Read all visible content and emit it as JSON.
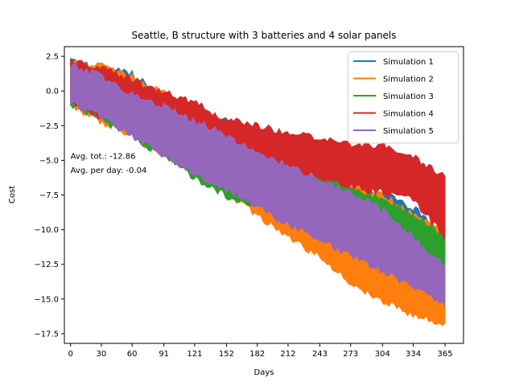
{
  "chart_data": {
    "type": "area",
    "title": "Seattle, B structure with 3 batteries and 4 solar panels",
    "xlabel": "Days",
    "ylabel": "Cost",
    "xlim": [
      -6,
      383
    ],
    "ylim": [
      -18.2,
      3.2
    ],
    "x_ticks": [
      0,
      30,
      60,
      91,
      121,
      152,
      182,
      212,
      243,
      273,
      304,
      334,
      365
    ],
    "y_ticks": [
      2.5,
      0.0,
      -2.5,
      -5.0,
      -7.5,
      -10.0,
      -12.5,
      -15.0,
      -17.5
    ],
    "y_tick_labels": [
      "2.5",
      "0.0",
      "−2.5",
      "−5.0",
      "−7.5",
      "−10.0",
      "−12.5",
      "−15.0",
      "−17.5"
    ],
    "legend_position": "top-right",
    "series": [
      {
        "name": "Simulation 1",
        "color": "#1f77b4",
        "x": [
          0,
          60,
          91,
          152,
          212,
          243,
          273,
          304,
          334,
          365
        ],
        "upper": [
          2.1,
          1.3,
          -0.6,
          -2.2,
          -4.4,
          -6.3,
          -6.8,
          -7.4,
          -8.4,
          -10.7
        ],
        "lower": [
          -0.9,
          -2.6,
          -4.3,
          -6.4,
          -9.0,
          -10.4,
          -11.3,
          -11.8,
          -12.4,
          -13.4
        ]
      },
      {
        "name": "Simulation 2",
        "color": "#ff7f0e",
        "x": [
          0,
          30,
          60,
          91,
          121,
          152,
          182,
          212,
          243,
          273,
          304,
          334,
          365
        ],
        "upper": [
          2.2,
          1.8,
          1.0,
          -0.2,
          -1.2,
          -2.1,
          -3.5,
          -4.8,
          -5.6,
          -6.6,
          -7.6,
          -8.8,
          -10.3
        ],
        "lower": [
          -1.0,
          -2.2,
          -3.3,
          -4.6,
          -5.8,
          -7.3,
          -9.0,
          -10.5,
          -12.0,
          -13.8,
          -15.1,
          -16.2,
          -16.9
        ]
      },
      {
        "name": "Simulation 3",
        "color": "#2ca02c",
        "x": [
          0,
          60,
          91,
          121,
          152,
          182,
          212,
          243,
          273,
          304,
          334,
          365
        ],
        "upper": [
          2.0,
          0.6,
          -0.6,
          -1.6,
          -2.6,
          -3.6,
          -4.7,
          -5.7,
          -6.9,
          -7.8,
          -8.9,
          -10.5
        ],
        "lower": [
          -0.9,
          -3.2,
          -4.8,
          -6.3,
          -7.6,
          -8.2,
          -8.7,
          -9.5,
          -10.3,
          -11.6,
          -12.6,
          -14.1
        ]
      },
      {
        "name": "Simulation 4",
        "color": "#d62728",
        "x": [
          0,
          30,
          60,
          91,
          121,
          152,
          182,
          212,
          243,
          273,
          304,
          334,
          365
        ],
        "upper": [
          2.2,
          1.7,
          0.8,
          -0.1,
          -0.8,
          -2.1,
          -2.5,
          -3.1,
          -3.4,
          -3.8,
          -3.9,
          -4.7,
          -6.2
        ],
        "lower": [
          -0.8,
          -1.9,
          -2.8,
          -3.4,
          -4.0,
          -4.5,
          -5.4,
          -5.7,
          -6.4,
          -6.9,
          -7.3,
          -7.8,
          -10.6
        ]
      },
      {
        "name": "Simulation 5",
        "color": "#9467bd",
        "x": [
          0,
          30,
          60,
          91,
          121,
          152,
          182,
          212,
          243,
          273,
          304,
          334,
          365
        ],
        "upper": [
          2.0,
          1.0,
          -0.2,
          -1.1,
          -2.2,
          -3.2,
          -4.4,
          -5.4,
          -6.3,
          -7.3,
          -8.6,
          -10.5,
          -12.7
        ],
        "lower": [
          -0.9,
          -1.8,
          -3.3,
          -4.6,
          -5.9,
          -7.1,
          -8.4,
          -9.6,
          -10.7,
          -11.9,
          -13.0,
          -14.1,
          -15.4
        ]
      }
    ],
    "annotations": [
      {
        "text": "Avg. tot.: -12.86",
        "x": 0,
        "y": -4.9
      },
      {
        "text": "Avg. per day: -0.04",
        "x": 0,
        "y": -5.9
      }
    ]
  }
}
